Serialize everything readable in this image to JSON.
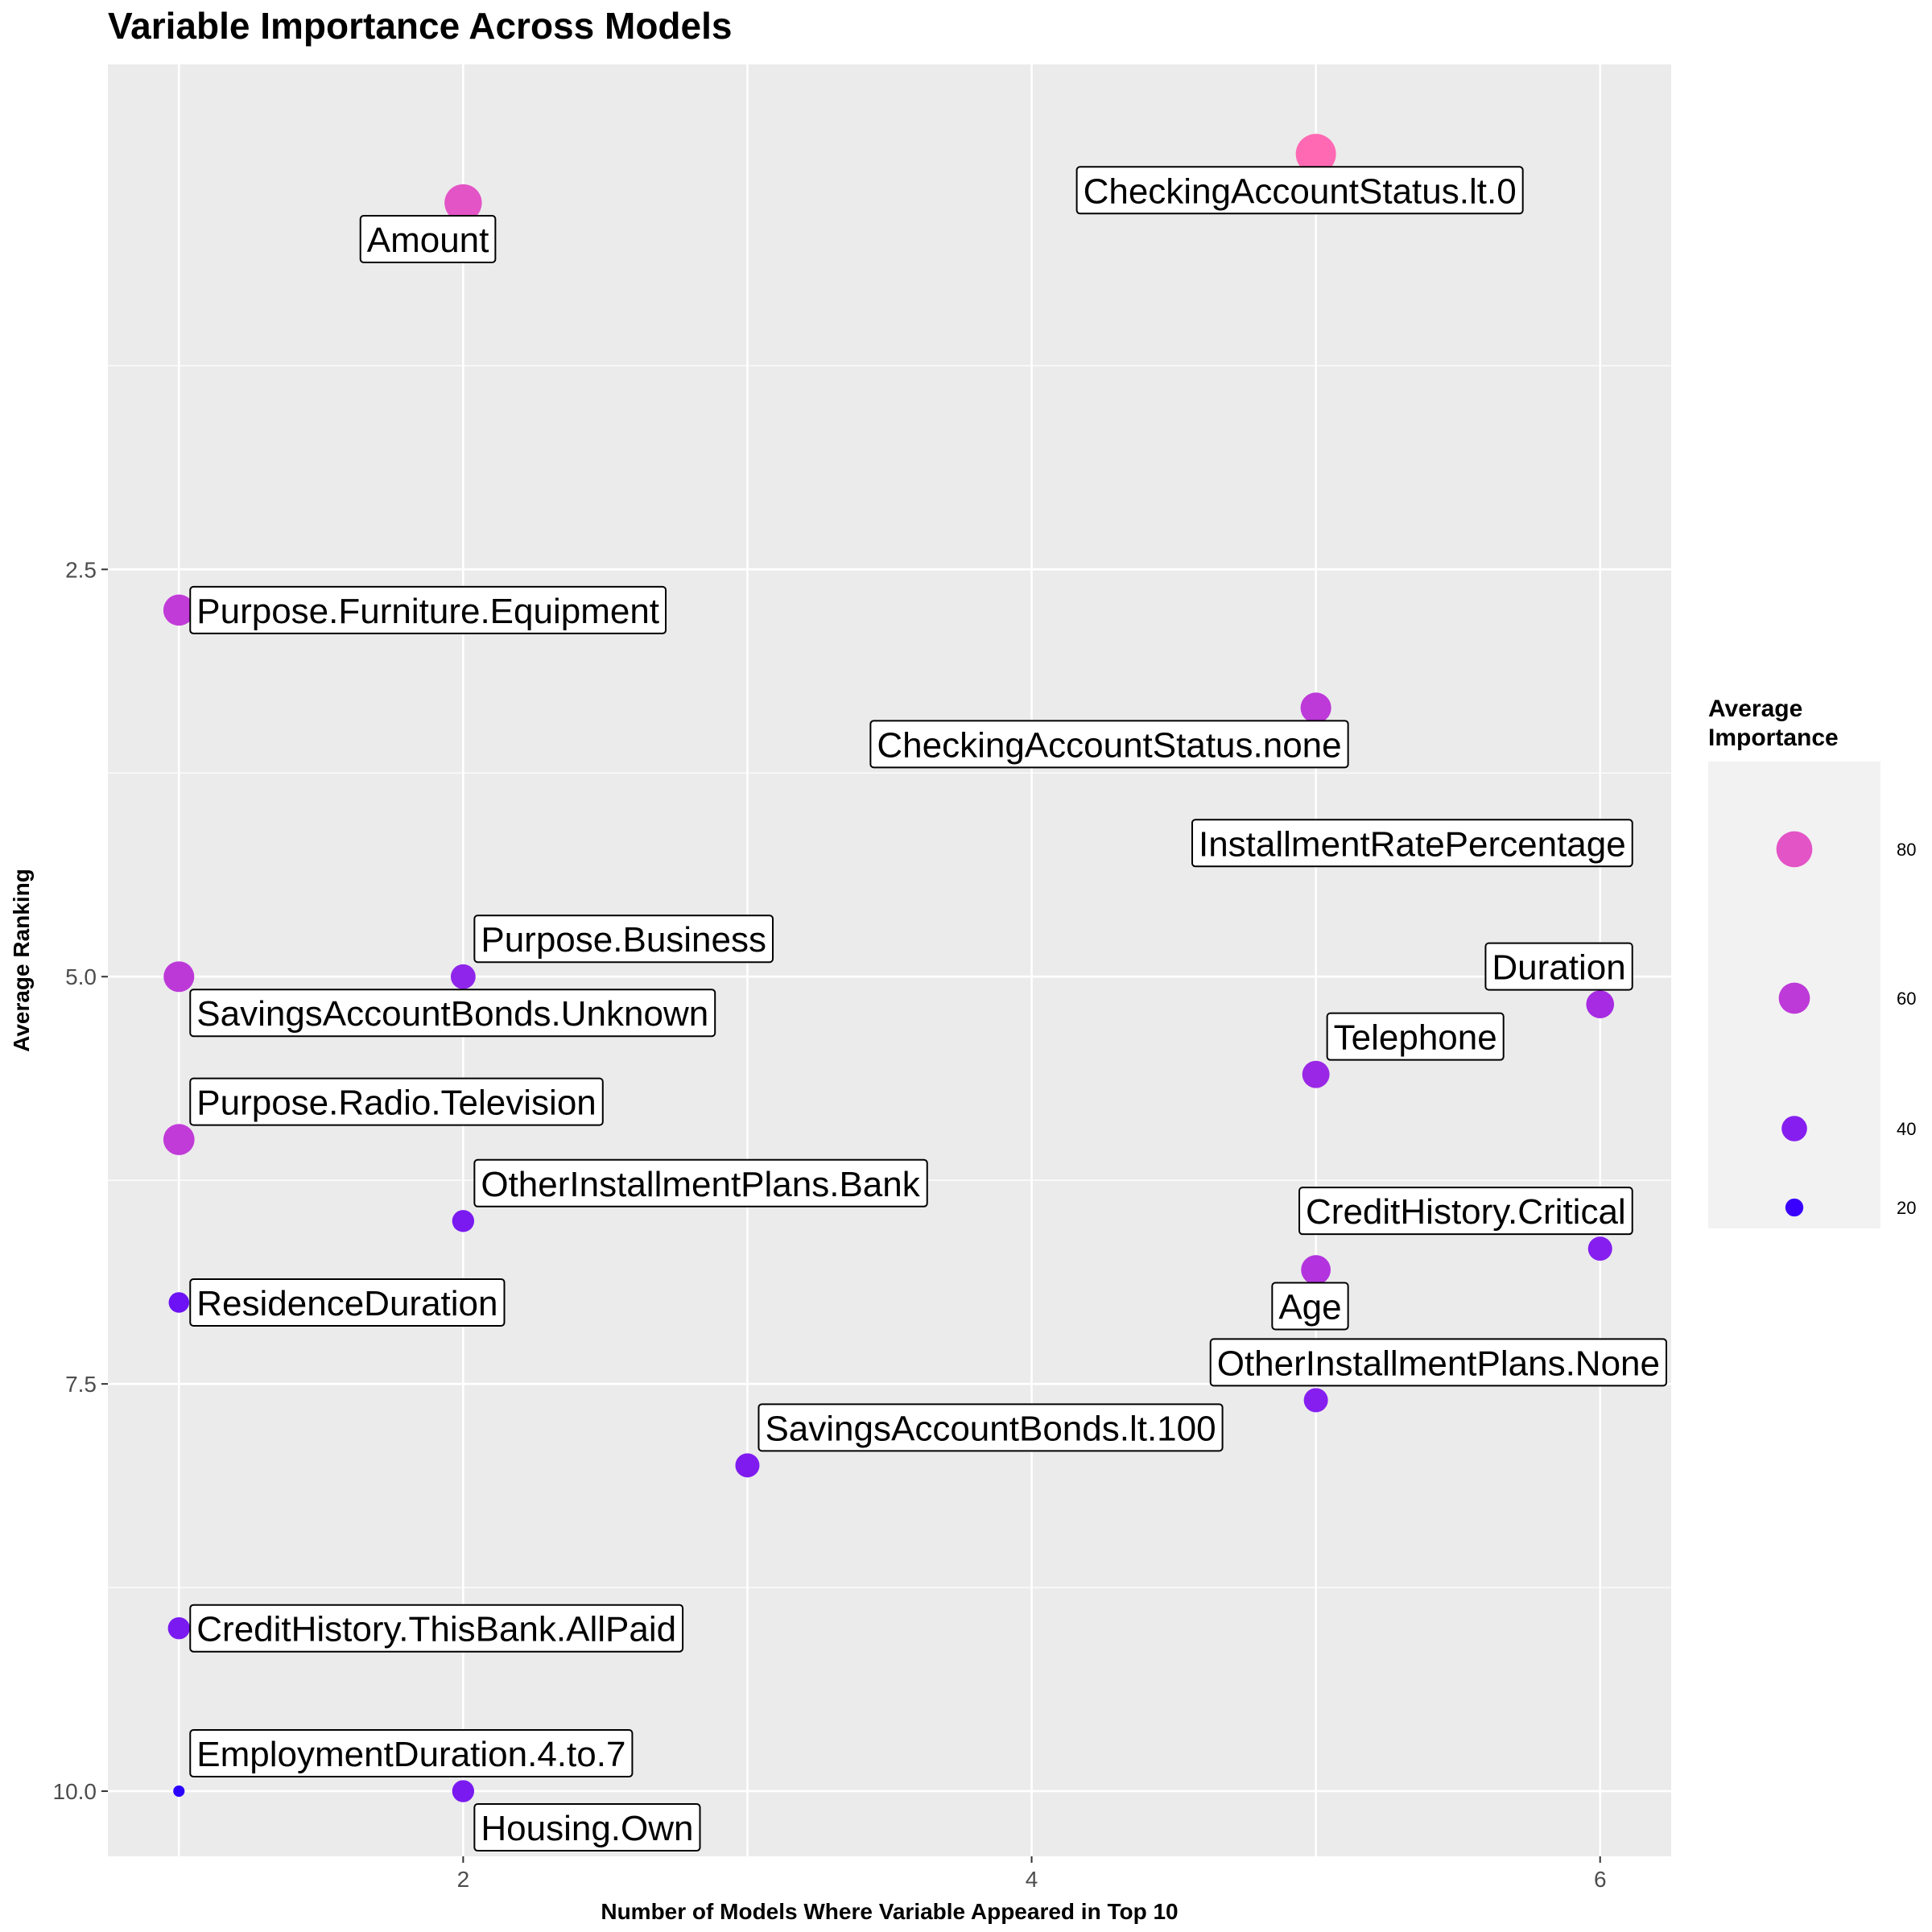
{
  "chart_data": {
    "type": "scatter",
    "title": "Variable Importance Across Models",
    "xlabel": "Number of Models Where Variable Appeared in Top 10",
    "ylabel": "Average Ranking",
    "xlim": [
      0.75,
      6.25
    ],
    "ylim": [
      -0.6,
      10.4
    ],
    "y_reversed": true,
    "x_ticks": [
      2,
      4,
      6
    ],
    "x_tick_labels": [
      "2",
      "4",
      "6"
    ],
    "y_ticks": [
      2.5,
      5.0,
      7.5,
      10.0
    ],
    "y_tick_labels": [
      "2.5",
      "5.0",
      "7.5",
      "10.0"
    ],
    "grid": true,
    "size_legend": {
      "title_lines": [
        "Average",
        "Importance"
      ],
      "values": [
        80,
        60,
        40,
        20
      ],
      "labels": [
        "80",
        "60",
        "40",
        "20"
      ],
      "placement": "right"
    },
    "colors": {
      "low": "#2200ff",
      "high": "#ff69b4",
      "panel": "#ebebeb",
      "grid": "#ffffff"
    },
    "points": [
      {
        "label": "CheckingAccountStatus.lt.0",
        "x": 5,
        "y": -0.05,
        "importance": 100,
        "color": "#ff69b4",
        "label_dx": 0,
        "label_dy": 1
      },
      {
        "label": "Amount",
        "x": 2,
        "y": 0.25,
        "importance": 86,
        "color": "#e354c6",
        "label_dx": -1,
        "label_dy": 1
      },
      {
        "label": "Purpose.Furniture.Equipment",
        "x": 1,
        "y": 2.75,
        "importance": 60,
        "color": "#c13bd8",
        "label_dx": 1,
        "label_dy": 0
      },
      {
        "label": "CheckingAccountStatus.none",
        "x": 5,
        "y": 3.35,
        "importance": 58,
        "color": "#bd39d8",
        "label_dx": -1,
        "label_dy": 1
      },
      {
        "label": "InstallmentRatePercentage",
        "x": 6,
        "y": 4.18,
        "importance": 42,
        "color": "#9424ea",
        "label_dx": -1,
        "label_dy": 0
      },
      {
        "label": "Purpose.Business",
        "x": 2,
        "y": 5.0,
        "importance": 38,
        "color": "#8f25ea",
        "label_dx": 1,
        "label_dy": -1
      },
      {
        "label": "SavingsAccountBonds.Unknown",
        "x": 1,
        "y": 5.0,
        "importance": 58,
        "color": "#bc39d8",
        "label_dx": 1,
        "label_dy": 1
      },
      {
        "label": "Duration",
        "x": 6,
        "y": 5.17,
        "importance": 48,
        "color": "#a62be2",
        "label_dx": -1,
        "label_dy": -1
      },
      {
        "label": "Telephone",
        "x": 5,
        "y": 5.6,
        "importance": 46,
        "color": "#9a27e6",
        "label_dx": 1,
        "label_dy": -1
      },
      {
        "label": "Purpose.Radio.Television",
        "x": 1,
        "y": 6.0,
        "importance": 60,
        "color": "#c13bd8",
        "label_dx": 1,
        "label_dy": -1
      },
      {
        "label": "OtherInstallmentPlans.Bank",
        "x": 2,
        "y": 6.5,
        "importance": 30,
        "color": "#7a1af0",
        "label_dx": 1,
        "label_dy": -1
      },
      {
        "label": "CreditHistory.Critical",
        "x": 6,
        "y": 6.67,
        "importance": 36,
        "color": "#861ef0",
        "label_dx": -1,
        "label_dy": -1
      },
      {
        "label": "Age",
        "x": 5,
        "y": 6.8,
        "importance": 54,
        "color": "#b334de",
        "label_dx": -1,
        "label_dy": 1
      },
      {
        "label": "ResidenceDuration",
        "x": 1,
        "y": 7.0,
        "importance": 26,
        "color": "#6c12f4",
        "label_dx": 1,
        "label_dy": 0
      },
      {
        "label": "OtherInstallmentPlans.None",
        "x": 5,
        "y": 7.6,
        "importance": 36,
        "color": "#861ef0",
        "label_dx": 1,
        "label_dy": -1
      },
      {
        "label": "SavingsAccountBonds.lt.100",
        "x": 3,
        "y": 8.0,
        "importance": 36,
        "color": "#7f1bef",
        "label_dx": 1,
        "label_dy": -1
      },
      {
        "label": "CreditHistory.ThisBank.AllPaid",
        "x": 1,
        "y": 9.0,
        "importance": 30,
        "color": "#7a1af0",
        "label_dx": 1,
        "label_dy": 0
      },
      {
        "label": "Housing.Own",
        "x": 2,
        "y": 10.0,
        "importance": 30,
        "color": "#7a1af0",
        "label_dx": 1,
        "label_dy": 1
      },
      {
        "label": "EmploymentDuration.4.to.7",
        "x": 1,
        "y": 10.0,
        "importance": 8,
        "color": "#2a00ff",
        "label_dx": 1,
        "label_dy": -1
      }
    ]
  }
}
